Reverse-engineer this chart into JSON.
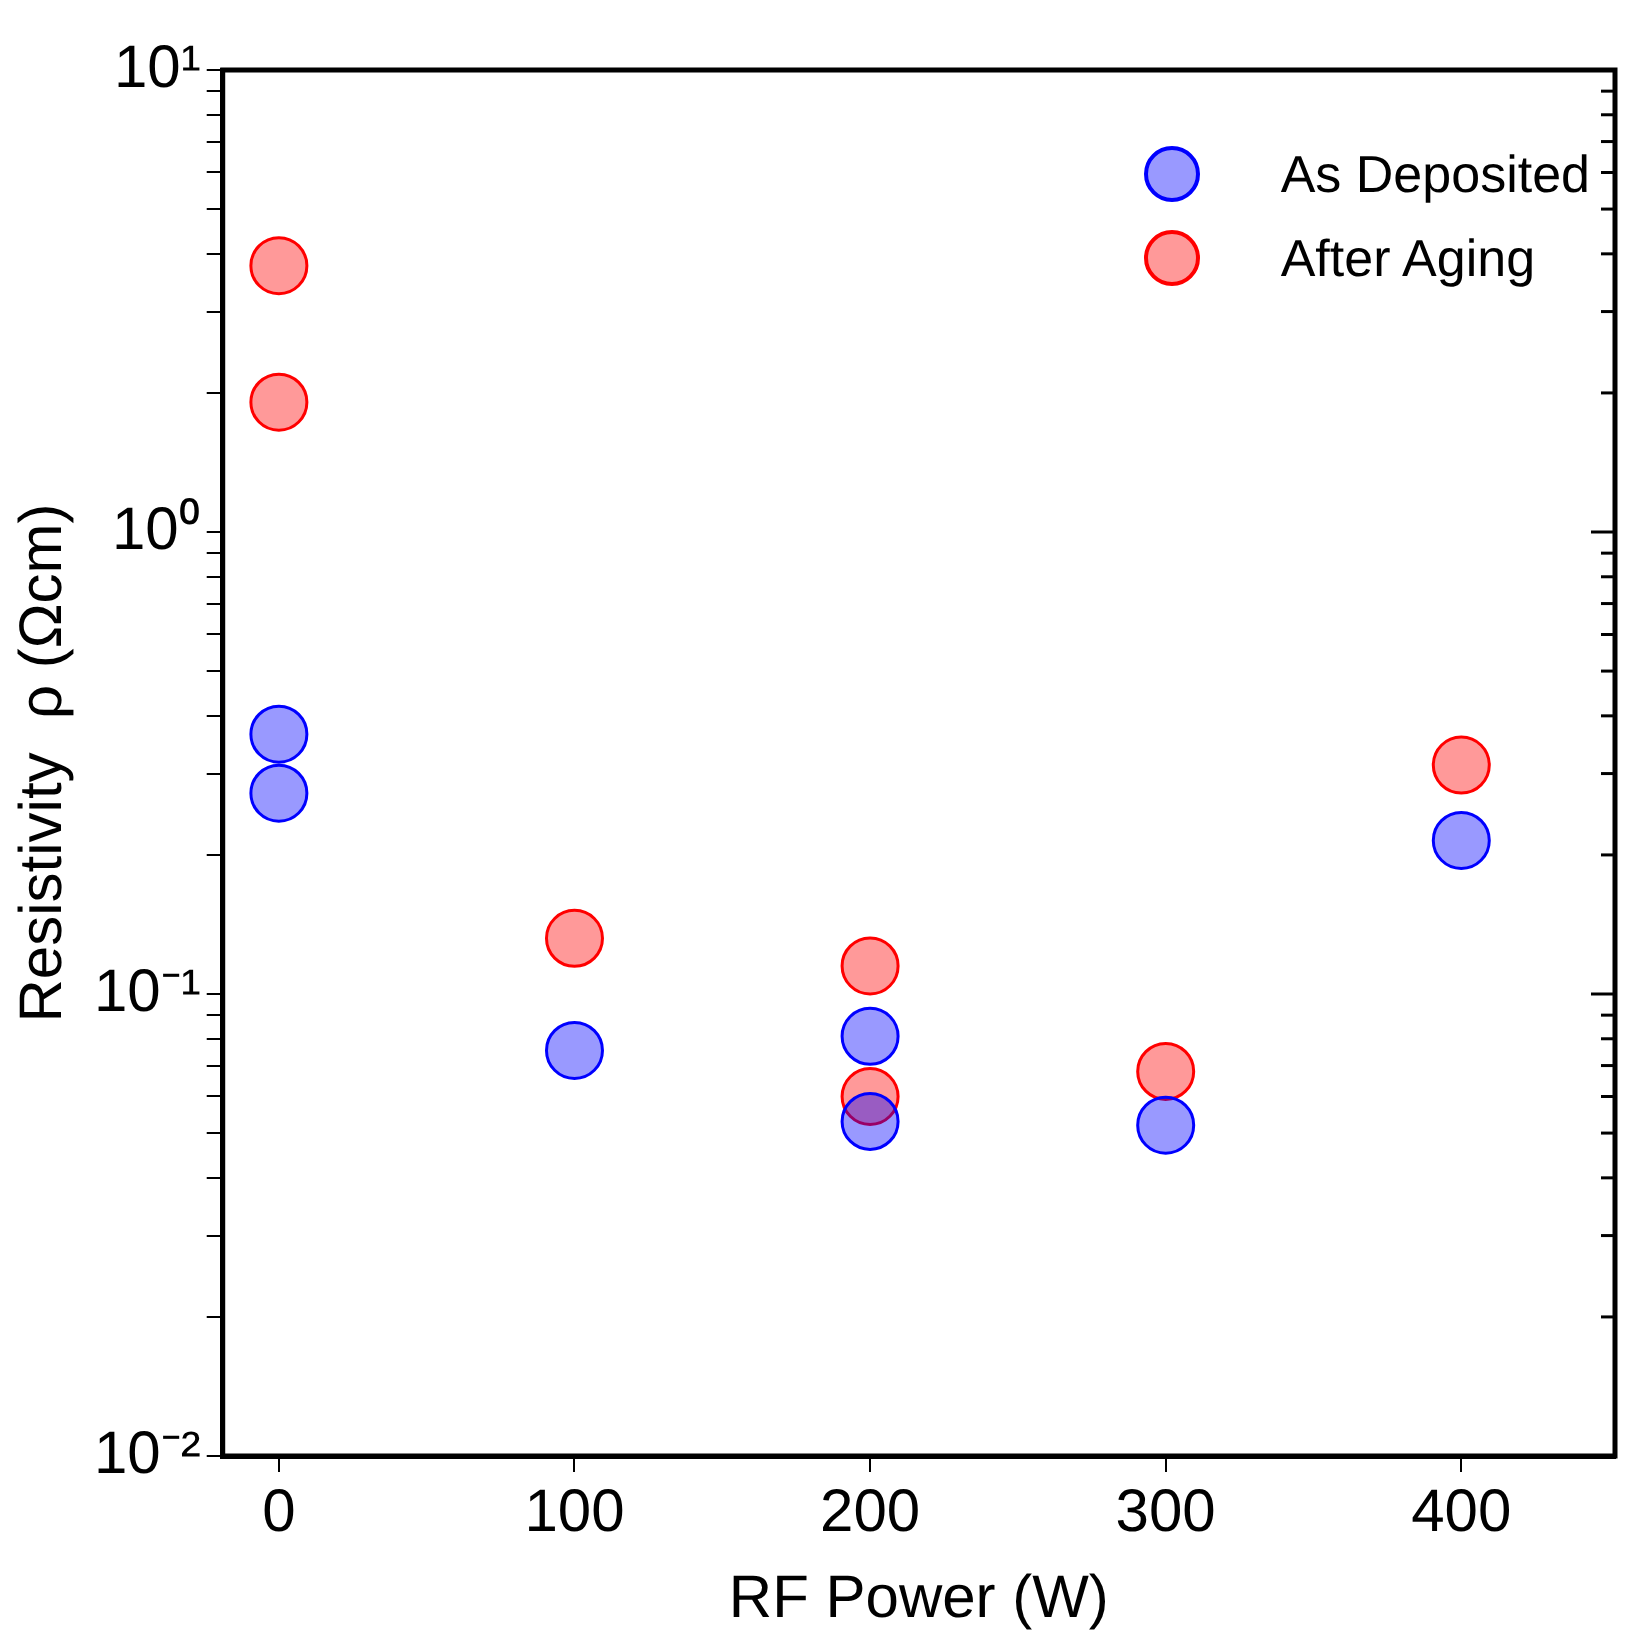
{
  "chart_data": {
    "type": "scatter",
    "xlabel": "RF Power (W)",
    "ylabel": "Resistivity  ρ (Ωcm)",
    "series": [
      {
        "name": "As Deposited",
        "color": "#0000ff",
        "x": [
          0,
          0,
          100,
          200,
          200,
          300,
          400
        ],
        "values": [
          0.365,
          0.272,
          0.0755,
          0.081,
          0.053,
          0.052,
          0.215
        ]
      },
      {
        "name": "After Aging",
        "color": "#ff0000",
        "x": [
          0,
          0,
          100,
          200,
          200,
          300,
          400
        ],
        "values": [
          3.77,
          1.91,
          0.132,
          0.115,
          0.06,
          0.068,
          0.313
        ]
      }
    ],
    "log": "y",
    "marker": "circle",
    "grid": false,
    "legend": "top right",
    "xlim": [
      -19,
      452
    ],
    "xticks": [
      0,
      100,
      200,
      300,
      400
    ],
    "ylim": [
      0.01,
      10
    ],
    "yticks": [
      {
        "value": 0.01,
        "label": "10⁻²"
      },
      {
        "value": 0.02,
        "label": null
      },
      {
        "value": 0.03,
        "label": null
      },
      {
        "value": 0.04,
        "label": null
      },
      {
        "value": 0.05,
        "label": null
      },
      {
        "value": 0.06,
        "label": null
      },
      {
        "value": 0.07,
        "label": null
      },
      {
        "value": 0.08,
        "label": null
      },
      {
        "value": 0.09,
        "label": null
      },
      {
        "value": 0.1,
        "label": "10⁻¹"
      },
      {
        "value": 0.2,
        "label": null
      },
      {
        "value": 0.3,
        "label": null
      },
      {
        "value": 0.4,
        "label": null
      },
      {
        "value": 0.5,
        "label": null
      },
      {
        "value": 0.6,
        "label": null
      },
      {
        "value": 0.7,
        "label": null
      },
      {
        "value": 0.8,
        "label": null
      },
      {
        "value": 0.9,
        "label": null
      },
      {
        "value": 1,
        "label": "10⁰"
      },
      {
        "value": 2,
        "label": null
      },
      {
        "value": 3,
        "label": null
      },
      {
        "value": 4,
        "label": null
      },
      {
        "value": 5,
        "label": null
      },
      {
        "value": 6,
        "label": null
      },
      {
        "value": 7,
        "label": null
      },
      {
        "value": 8,
        "label": null
      },
      {
        "value": 9,
        "label": null
      },
      {
        "value": 10,
        "label": "10¹"
      }
    ]
  }
}
